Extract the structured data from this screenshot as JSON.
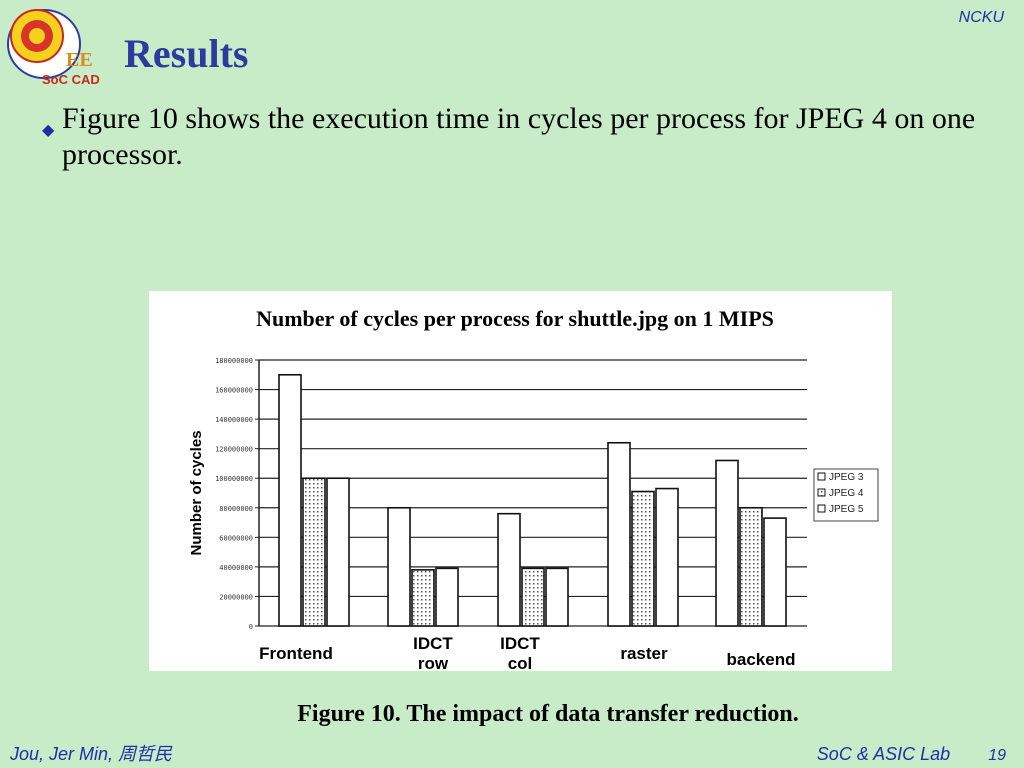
{
  "header": {
    "title": "Results",
    "corner_label": "NCKU",
    "logo_text": "SoC CAD"
  },
  "body": {
    "bullet": "Figure 10 shows the execution time in cycles per process for JPEG 4 on one processor."
  },
  "caption": "Figure 10. The impact of data transfer reduction.",
  "footer": {
    "author": "Jou, Jer Min,  周哲民",
    "lab": "SoC & ASIC Lab",
    "page": "19"
  },
  "colors": {
    "background": "#c8ecc8",
    "title": "#2e3b9e",
    "footer_text": "#1f2fa8"
  },
  "chart_data": {
    "type": "bar",
    "title": "Number of cycles per process for shuttle.jpg on 1 MIPS",
    "ylabel": "Number of cycles",
    "xlabel": "",
    "categories": [
      "Frontend",
      "IDCT row",
      "IDCT col",
      "raster",
      "backend"
    ],
    "series": [
      {
        "name": "JPEG 3",
        "values": [
          170000000,
          80000000,
          76000000,
          124000000,
          112000000
        ]
      },
      {
        "name": "JPEG 4",
        "values": [
          100000000,
          38000000,
          39000000,
          91000000,
          80000000
        ]
      },
      {
        "name": "JPEG 5",
        "values": [
          100000000,
          39000000,
          39000000,
          93000000,
          73000000
        ]
      }
    ],
    "ylim": [
      0,
      180000000
    ],
    "yticks": [
      "0",
      "20000000",
      "40000000",
      "60000000",
      "80000000",
      "100000000",
      "120000000",
      "140000000",
      "160000000",
      "180000000"
    ],
    "grid": true,
    "legend_position": "right"
  }
}
